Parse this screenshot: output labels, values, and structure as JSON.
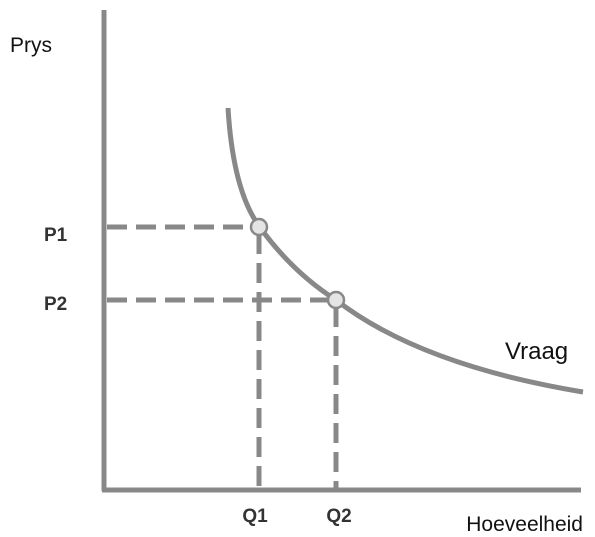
{
  "axes": {
    "y_label": "Prys",
    "x_label": "Hoeveelheid"
  },
  "curve": {
    "label": "Vraag"
  },
  "points": [
    {
      "price": "P1",
      "quantity": "Q1"
    },
    {
      "price": "P2",
      "quantity": "Q2"
    }
  ]
}
